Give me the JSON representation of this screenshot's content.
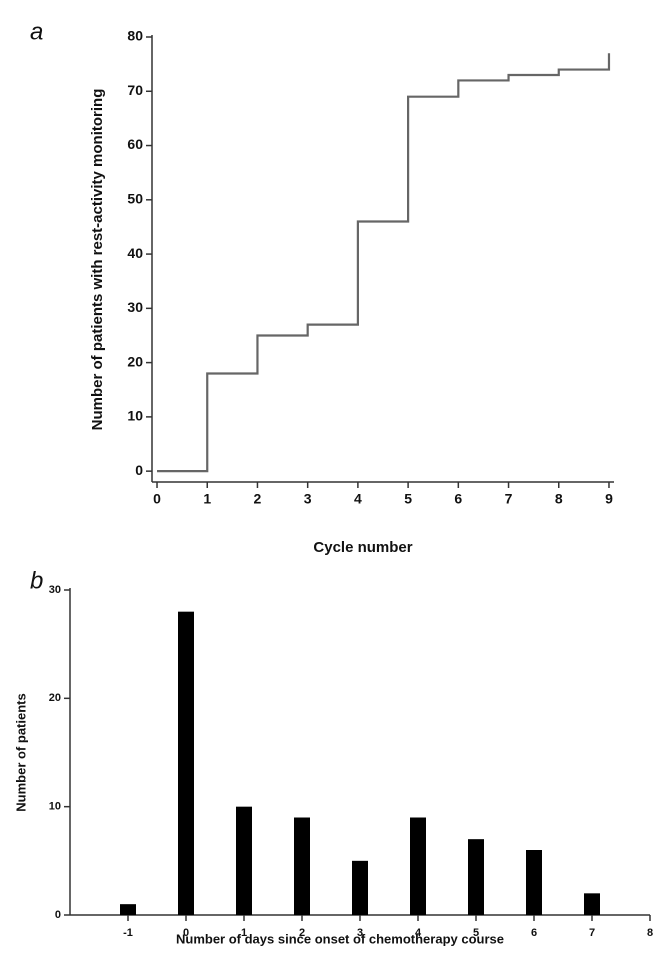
{
  "chart_data": [
    {
      "type": "line",
      "panel_label": "a",
      "drawstyle": "steps-post",
      "x_label": "Cycle number",
      "y_label": "Number of patients with rest-activity monitoring",
      "x": [
        0,
        1,
        2,
        3,
        4,
        5,
        6,
        7,
        8,
        9
      ],
      "series": [
        {
          "name": null,
          "color": "#666666",
          "values": [
            0,
            18,
            25,
            27,
            46,
            69,
            72,
            73,
            74,
            77
          ]
        }
      ],
      "xlim": [
        -0.1,
        9.1
      ],
      "xticks": [
        0,
        1,
        2,
        3,
        4,
        5,
        6,
        7,
        8,
        9
      ],
      "ylim": [
        -2,
        80
      ],
      "yticks": [
        0,
        10,
        20,
        30,
        40,
        50,
        60,
        70,
        80
      ]
    },
    {
      "type": "bar",
      "panel_label": "b",
      "x_label": "Number of days since onset of chemotherapy course",
      "y_label": "Number of patients",
      "x": [
        -1,
        0,
        1,
        2,
        3,
        4,
        5,
        6,
        7
      ],
      "values": [
        1,
        28,
        10,
        9,
        5,
        9,
        7,
        6,
        2
      ],
      "color": "#000000",
      "xlim": [
        -2,
        8
      ],
      "xticks": [
        -1,
        0,
        1,
        2,
        3,
        4,
        5,
        6,
        7,
        8
      ],
      "ylim": [
        0,
        30
      ],
      "yticks": [
        0,
        10,
        20,
        30
      ]
    }
  ]
}
